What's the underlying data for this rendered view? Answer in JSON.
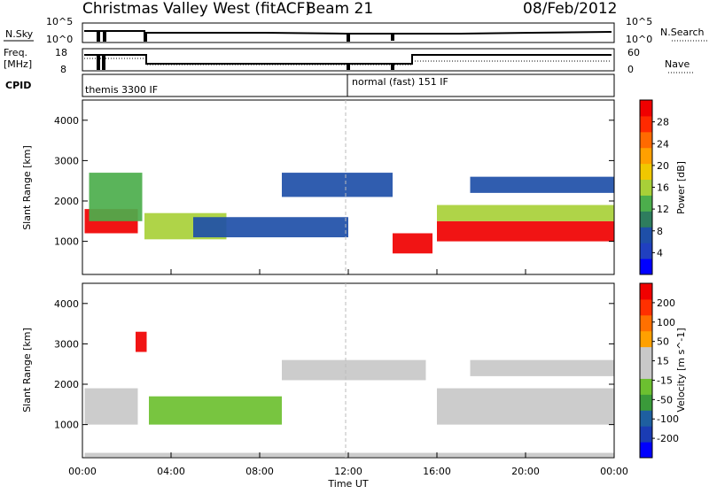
{
  "header": {
    "title": "Christmas Valley West (fitACF)",
    "beam": "Beam 21",
    "date": "08/Feb/2012"
  },
  "panels": {
    "nsky": {
      "label": "N.Sky",
      "ticks": [
        "10^5",
        "10^0"
      ],
      "right_label": "N.Search",
      "right_ticks": [
        "10^5",
        "10^0"
      ]
    },
    "freq": {
      "label_line1": "Freq.",
      "label_line2": "[MHz]",
      "ticks": [
        "18",
        "8"
      ],
      "right_label": "Nave",
      "right_ticks": [
        "60",
        "0"
      ]
    },
    "cpid": {
      "label": "CPID",
      "modes": [
        "themis 3300 IF",
        "normal (fast) 151 IF"
      ]
    }
  },
  "colors": {
    "power": [
      "#0000ff",
      "#2040c0",
      "#1e4fa8",
      "#2e7d5e",
      "#4cae4c",
      "#a8d038",
      "#f0c800",
      "#ffa000",
      "#ff6a00",
      "#ff2a00",
      "#f00000"
    ],
    "velocity": [
      "#0000ff",
      "#1a3cb4",
      "#1e5fa0",
      "#3a9a3a",
      "#6cc030",
      "#c8c8c8",
      "#c8c8c8",
      "#ffa000",
      "#ff7000",
      "#ff3000",
      "#f00000"
    ]
  },
  "chart_data": [
    {
      "type": "heatmap",
      "name": "power",
      "ylabel": "Slant Range [km]",
      "ylim": [
        180,
        4500
      ],
      "yticks": [
        1000,
        2000,
        3000,
        4000
      ],
      "xlim_hours": [
        0,
        24
      ],
      "colorbar_label": "Power [dB]",
      "colorbar_range": [
        0,
        30
      ],
      "colorbar_ticks": [
        "4",
        "8",
        "12",
        "16",
        "20",
        "24",
        "28"
      ],
      "regions": [
        {
          "x": [
            0.1,
            2.5
          ],
          "y": [
            1200,
            1800
          ],
          "value": 28
        },
        {
          "x": [
            0.3,
            2.7
          ],
          "y": [
            1500,
            2700
          ],
          "value": 12
        },
        {
          "x": [
            2.8,
            6.5
          ],
          "y": [
            1050,
            1700
          ],
          "value": 16
        },
        {
          "x": [
            5.0,
            12.0
          ],
          "y": [
            1100,
            1600
          ],
          "value": 8
        },
        {
          "x": [
            9.0,
            14.0
          ],
          "y": [
            2100,
            2700
          ],
          "value": 6
        },
        {
          "x": [
            14.0,
            15.8
          ],
          "y": [
            700,
            1200
          ],
          "value": 28
        },
        {
          "x": [
            16.0,
            24.0
          ],
          "y": [
            1000,
            1500
          ],
          "value": 28
        },
        {
          "x": [
            16.0,
            24.0
          ],
          "y": [
            1500,
            1900
          ],
          "value": 14
        },
        {
          "x": [
            17.5,
            24.0
          ],
          "y": [
            2200,
            2600
          ],
          "value": 6
        }
      ]
    },
    {
      "type": "heatmap",
      "name": "velocity",
      "ylabel": "Slant Range [km]",
      "xlabel": "Time UT",
      "ylim": [
        180,
        4500
      ],
      "yticks": [
        1000,
        2000,
        3000,
        4000
      ],
      "xlim_hours": [
        0,
        24
      ],
      "xticks": [
        "00:00",
        "04:00",
        "08:00",
        "12:00",
        "16:00",
        "20:00",
        "00:00"
      ],
      "colorbar_label": "Velocity [m s^-1]",
      "colorbar_range": [
        -250,
        250
      ],
      "colorbar_ticks": [
        "200",
        "100",
        "50",
        "15",
        "-15",
        "-50",
        "-100",
        "-200"
      ],
      "regions": [
        {
          "x": [
            0.1,
            2.5
          ],
          "y": [
            1000,
            1900
          ],
          "value": 0
        },
        {
          "x": [
            2.4,
            2.9
          ],
          "y": [
            2800,
            3300
          ],
          "value": 220
        },
        {
          "x": [
            3.0,
            9.0
          ],
          "y": [
            1000,
            1700
          ],
          "value": -50
        },
        {
          "x": [
            9.0,
            15.5
          ],
          "y": [
            2100,
            2600
          ],
          "value": 0
        },
        {
          "x": [
            16.0,
            24.0
          ],
          "y": [
            1000,
            1900
          ],
          "value": 0
        },
        {
          "x": [
            17.5,
            24.0
          ],
          "y": [
            2200,
            2600
          ],
          "value": 0
        },
        {
          "x": [
            0.1,
            24.0
          ],
          "y": [
            200,
            300
          ],
          "value": 30
        }
      ]
    }
  ]
}
